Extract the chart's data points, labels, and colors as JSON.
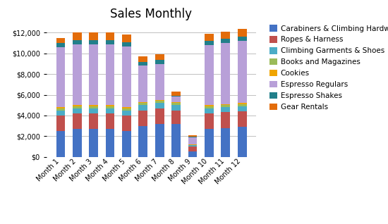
{
  "title": "Sales Monthly",
  "categories": [
    "Month 1",
    "Month 2",
    "Month 3",
    "Month 4",
    "Month 5",
    "Month 6",
    "Month 7",
    "Month 8",
    "Month 9",
    "Month 10",
    "Month 11",
    "Month 12"
  ],
  "series": [
    {
      "label": "Carabiners & Climbing Hardwar",
      "color": "#4472C4",
      "values": [
        2500,
        2700,
        2700,
        2700,
        2500,
        3000,
        3200,
        3200,
        500,
        2700,
        2800,
        2900
      ]
    },
    {
      "label": "Ropes & Harness",
      "color": "#C0504D",
      "values": [
        1500,
        1500,
        1500,
        1500,
        1500,
        1500,
        1500,
        1300,
        500,
        1500,
        1500,
        1500
      ]
    },
    {
      "label": "Climbing Garments & Shoes",
      "color": "#4BACC6",
      "values": [
        500,
        500,
        500,
        500,
        500,
        500,
        500,
        500,
        100,
        500,
        500,
        500
      ]
    },
    {
      "label": "Books and Magazines",
      "color": "#9BBB59",
      "values": [
        200,
        200,
        200,
        200,
        200,
        200,
        200,
        200,
        50,
        200,
        200,
        200
      ]
    },
    {
      "label": "Cookies",
      "color": "#F0A500",
      "values": [
        100,
        100,
        100,
        100,
        100,
        100,
        100,
        100,
        30,
        100,
        100,
        100
      ]
    },
    {
      "label": "Espresso Regulars",
      "color": "#B8A0D8",
      "values": [
        5800,
        5900,
        5900,
        5900,
        5900,
        3500,
        3500,
        500,
        700,
        5800,
        5900,
        6000
      ]
    },
    {
      "label": "Espresso Shakes",
      "color": "#217F8A",
      "values": [
        400,
        400,
        400,
        400,
        400,
        400,
        400,
        100,
        100,
        400,
        400,
        400
      ]
    },
    {
      "label": "Gear Rentals",
      "color": "#E36C09",
      "values": [
        500,
        700,
        700,
        700,
        700,
        500,
        500,
        400,
        100,
        700,
        700,
        800
      ]
    }
  ],
  "ylim": [
    0,
    13000
  ],
  "yticks": [
    0,
    2000,
    4000,
    6000,
    8000,
    10000,
    12000
  ],
  "background_color": "#FFFFFF",
  "plot_bg_color": "#FFFFFF",
  "grid_color": "#C0C0C0",
  "title_fontsize": 12,
  "legend_fontsize": 7.5,
  "tick_fontsize": 7,
  "bar_width": 0.55
}
